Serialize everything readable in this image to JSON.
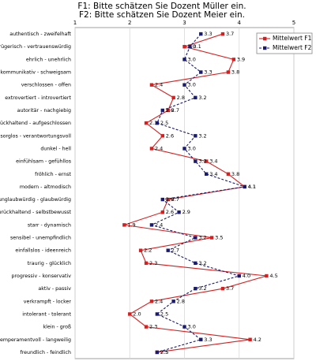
{
  "chart_data": {
    "type": "profile",
    "title": [
      "F1: Bitte schätzen Sie Dozent Müller ein.",
      "F2: Bitte schätzen Sie Dozent Meier ein."
    ],
    "categories": [
      "authentisch - zweifelhaft",
      "trügerisch - vertrauenswürdig",
      "ehrlich - unehrlich",
      "kommunikativ - schweigsam",
      "verschlossen - offen",
      "extrovertiert - introvertiert",
      "autoritär - nachgiebig",
      "zurückhaltend - aufgeschlossen",
      "sorglos - verantwortungsvoll",
      "dunkel - hell",
      "einfühlsam - gefühllos",
      "fröhlich - ernst",
      "modern - altmodisch",
      "unglaubwürdig - glaubwürdig",
      "zurückhaltend - selbstbewusst",
      "starr - dynamisch",
      "sensibel - unempfindlich",
      "einfallslos - ideenreich",
      "traurig - glücklich",
      "progressiv - konservativ",
      "aktiv - passiv",
      "verkrampft - locker",
      "intolerant - tolerant",
      "klein - groß",
      "temperamentvoll - langweilig",
      "freundlich - feindlich"
    ],
    "series": [
      {
        "name": "Mittelwert F1",
        "color": "#d42020",
        "dashed": false,
        "values": [
          3.7,
          3.0,
          3.9,
          3.8,
          2.4,
          2.8,
          2.7,
          2.3,
          2.6,
          2.4,
          3.4,
          3.8,
          4.1,
          2.7,
          2.6,
          1.9,
          3.5,
          2.2,
          2.3,
          4.5,
          3.7,
          2.4,
          2.0,
          2.3,
          4.2,
          2.5
        ],
        "value_labels": [
          "3.7",
          "3.0",
          "3.9",
          "3.8",
          "2.4",
          "2.8",
          "2.7",
          "2.3",
          "2.6",
          "2.4",
          "3.4",
          "3.8",
          "4.1",
          "2.7",
          "2.6",
          "1.9",
          "3.5",
          "2.2",
          "2.3",
          "4.5",
          "3.7",
          "2.4",
          "2.0",
          "2.3",
          "4.2",
          "2.5"
        ]
      },
      {
        "name": "Mittelwert F2",
        "color": "#1a1a6e",
        "dashed": true,
        "values": [
          3.3,
          3.1,
          3.0,
          3.3,
          3.0,
          3.2,
          2.6,
          2.5,
          3.2,
          3.0,
          3.2,
          3.4,
          4.1,
          2.6,
          2.9,
          2.4,
          3.2,
          2.7,
          3.2,
          4.0,
          3.2,
          2.8,
          2.5,
          3.0,
          3.3,
          2.5
        ],
        "value_labels": [
          "3.3",
          "3.1",
          "3.0",
          "3.3",
          "3.0",
          "3.2",
          "2.6",
          "2.5",
          "3.2",
          "3.0",
          "3.2",
          "3.4",
          "4.1",
          "2.6",
          "2.9",
          "2.4",
          "3.2",
          "2.7",
          "3.2",
          "4.0",
          "3.2",
          "2.8",
          "2.5",
          "3.0",
          "3.3",
          "2.5"
        ]
      }
    ],
    "xlim": [
      1,
      5
    ],
    "xticks": [
      1,
      2,
      3,
      4,
      5
    ],
    "grid": true,
    "legend": "top-right"
  }
}
